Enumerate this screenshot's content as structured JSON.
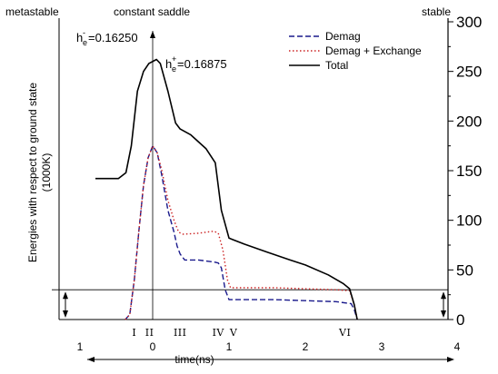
{
  "chart_data": {
    "type": "line",
    "title": "",
    "top_labels": {
      "left": "metastable",
      "center": "constant saddle",
      "right": "stable"
    },
    "ylabel": "Energies with respect to ground state",
    "ylabel_unit": "(1000K)",
    "xlabel": "time(ns)",
    "ylim": [
      0,
      300
    ],
    "xlim": [
      -1,
      4
    ],
    "y_ticks": [
      "0",
      "50",
      "100",
      "150",
      "200",
      "250",
      "300"
    ],
    "x_ticks": [
      "1",
      "0",
      "1",
      "2",
      "3",
      "4"
    ],
    "phase_labels": [
      "I",
      "II",
      "III",
      "IV",
      "V",
      "VI"
    ],
    "phase_label_x": [
      -0.24,
      -0.04,
      0.36,
      0.86,
      1.06,
      2.52
    ],
    "annotations": {
      "h_minus_base": "h",
      "h_minus_sup": "-",
      "h_minus_sub": "e",
      "h_minus_value": "=0.16250",
      "h_plus_base": "h",
      "h_plus_sup": "+",
      "h_plus_sub": "e",
      "h_plus_value": "=0.16875"
    },
    "series": [
      {
        "name": "Demag",
        "style": "dashed",
        "color": "#1a1a8c",
        "points": [
          [
            -0.36,
            0
          ],
          [
            -0.3,
            5
          ],
          [
            -0.24,
            40
          ],
          [
            -0.18,
            90
          ],
          [
            -0.12,
            135
          ],
          [
            -0.06,
            163
          ],
          [
            0,
            175
          ],
          [
            0.06,
            168
          ],
          [
            0.12,
            145
          ],
          [
            0.2,
            110
          ],
          [
            0.28,
            88
          ],
          [
            0.32,
            74
          ],
          [
            0.36,
            66
          ],
          [
            0.42,
            60
          ],
          [
            0.6,
            60
          ],
          [
            0.8,
            58
          ],
          [
            0.86,
            57
          ],
          [
            0.9,
            52
          ],
          [
            0.95,
            30
          ],
          [
            1.0,
            20
          ],
          [
            1.2,
            20
          ],
          [
            1.6,
            20
          ],
          [
            2.0,
            19
          ],
          [
            2.4,
            18
          ],
          [
            2.6,
            16
          ],
          [
            2.64,
            10
          ],
          [
            2.68,
            0
          ]
        ]
      },
      {
        "name": "Demag + Exchange",
        "style": "dotted",
        "color": "#cc2222",
        "points": [
          [
            -0.36,
            0
          ],
          [
            -0.3,
            5
          ],
          [
            -0.24,
            40
          ],
          [
            -0.18,
            90
          ],
          [
            -0.12,
            135
          ],
          [
            -0.06,
            163
          ],
          [
            0,
            175
          ],
          [
            0.06,
            168
          ],
          [
            0.12,
            150
          ],
          [
            0.2,
            120
          ],
          [
            0.28,
            100
          ],
          [
            0.34,
            88
          ],
          [
            0.4,
            86
          ],
          [
            0.6,
            87
          ],
          [
            0.8,
            89
          ],
          [
            0.86,
            87
          ],
          [
            0.92,
            70
          ],
          [
            0.98,
            40
          ],
          [
            1.02,
            32
          ],
          [
            1.2,
            32
          ],
          [
            1.6,
            32
          ],
          [
            2.0,
            31
          ],
          [
            2.4,
            30
          ],
          [
            2.58,
            29
          ],
          [
            2.64,
            15
          ],
          [
            2.68,
            0
          ]
        ]
      },
      {
        "name": "Total",
        "style": "solid",
        "color": "#000000",
        "points": [
          [
            -0.75,
            142
          ],
          [
            -0.45,
            142
          ],
          [
            -0.35,
            148
          ],
          [
            -0.28,
            175
          ],
          [
            -0.2,
            230
          ],
          [
            -0.12,
            250
          ],
          [
            -0.05,
            258
          ],
          [
            0.05,
            262
          ],
          [
            0.1,
            258
          ],
          [
            0.2,
            230
          ],
          [
            0.3,
            198
          ],
          [
            0.36,
            192
          ],
          [
            0.5,
            186
          ],
          [
            0.7,
            172
          ],
          [
            0.82,
            158
          ],
          [
            0.9,
            110
          ],
          [
            1.0,
            82
          ],
          [
            1.2,
            76
          ],
          [
            1.5,
            68
          ],
          [
            1.8,
            60
          ],
          [
            2.0,
            55
          ],
          [
            2.3,
            45
          ],
          [
            2.5,
            36
          ],
          [
            2.58,
            31
          ],
          [
            2.64,
            15
          ],
          [
            2.68,
            0
          ]
        ]
      }
    ]
  }
}
